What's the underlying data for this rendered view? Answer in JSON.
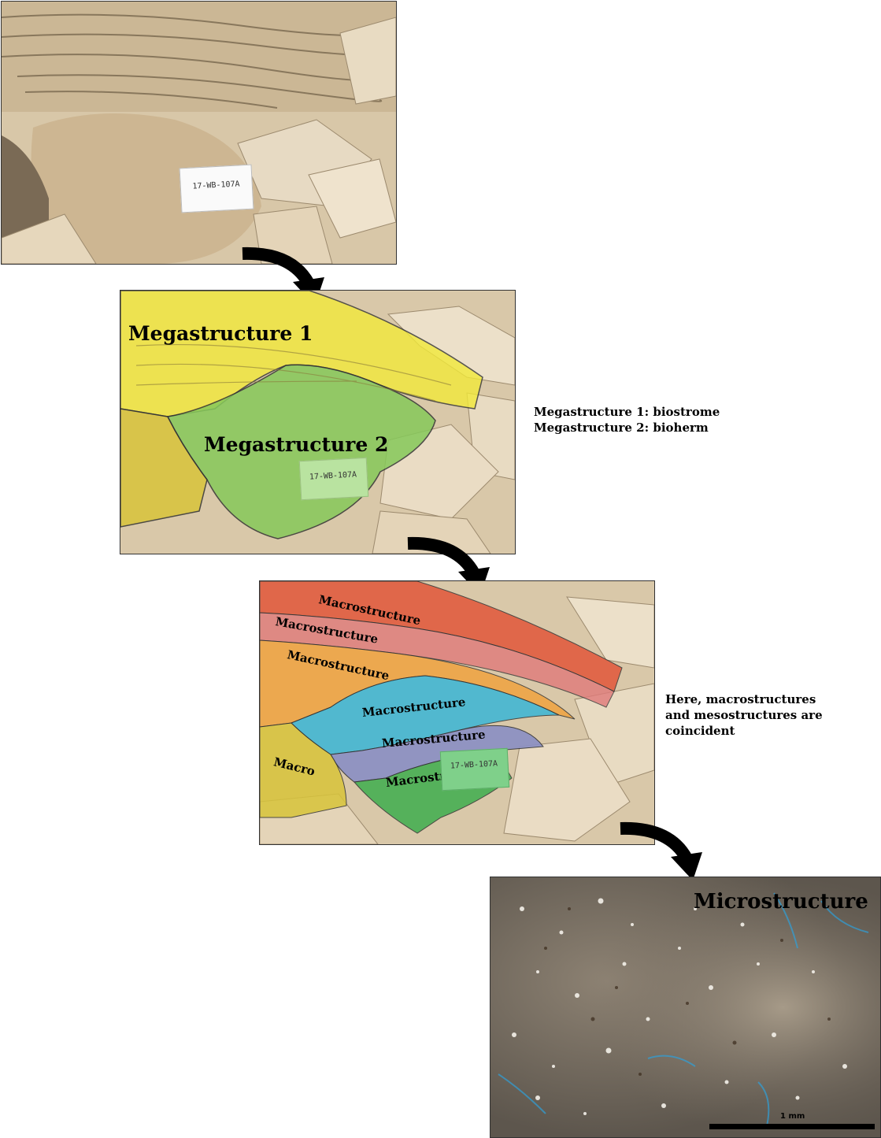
{
  "panel1": {
    "sample_tag": "17-WB-107A"
  },
  "panel2": {
    "label_1": "Megastructure 1",
    "label_2": "Megastructure 2",
    "sample_tag": "17-WB-107A",
    "colors": {
      "mega1": "#f2e93a",
      "mega2": "#86c95a"
    }
  },
  "note_mega": {
    "line1": "Megastructure 1: biostrome",
    "line2": "Megastructure 2: bioherm"
  },
  "panel3": {
    "labels": [
      "Macrostructure",
      "Macrostructure",
      "Macrostructure",
      "Macrostructure",
      "Macrostructure",
      "Macrostructure",
      "Macro"
    ],
    "sample_tag": "17-WB-107A",
    "colors": {
      "red": "#e2573a",
      "pink": "#e07a7a",
      "orange": "#f0a340",
      "cyan": "#3ab6d6",
      "purple": "#8a8fc4",
      "green": "#3fae4e",
      "yellow": "#d8c43a"
    }
  },
  "note_macro": {
    "line1": "Here, macrostructures",
    "line2": "and mesostructures are",
    "line3": "coincident"
  },
  "panel4": {
    "title": "Microstructure",
    "scale_label": "1 mm"
  }
}
